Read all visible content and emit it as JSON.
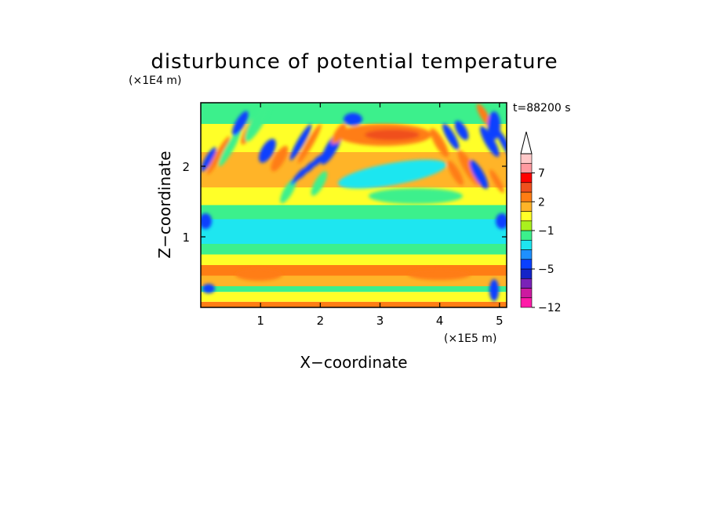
{
  "chart_data": {
    "type": "heatmap",
    "title": "disturbunce of potential temperature",
    "xlabel": "X−coordinate",
    "ylabel": "Z−coordinate",
    "x_unit": "(×1E5 m)",
    "y_unit": "(×1E4 m)",
    "time_label": "t=88200 s",
    "xlim": [
      0,
      5.12
    ],
    "ylim": [
      0,
      2.9
    ],
    "x_ticks": [
      {
        "value": 1,
        "label": "1"
      },
      {
        "value": 2,
        "label": "2"
      },
      {
        "value": 3,
        "label": "3"
      },
      {
        "value": 4,
        "label": "4"
      },
      {
        "value": 5,
        "label": "5"
      }
    ],
    "y_ticks": [
      {
        "value": 1,
        "label": "1"
      },
      {
        "value": 2,
        "label": "2"
      }
    ],
    "colorbar": {
      "levels": [
        -12,
        -10,
        -8,
        -6,
        -5,
        -4,
        -3,
        -2,
        -1,
        0,
        1,
        2,
        3,
        5,
        7,
        9,
        11
      ],
      "colors": [
        "#ff1aa8",
        "#cc1aa0",
        "#7a22b8",
        "#1424c8",
        "#0a40ff",
        "#1e90ff",
        "#1ee6f0",
        "#3cf08c",
        "#aaf01e",
        "#ffff28",
        "#ffb428",
        "#ff7d14",
        "#f0501e",
        "#ff0000",
        "#ff9aa0",
        "#ffc8c8"
      ],
      "tick_labels": [
        {
          "value": -12,
          "label": "−12"
        },
        {
          "value": -5,
          "label": "−5"
        },
        {
          "value": -1,
          "label": "−1"
        },
        {
          "value": 2,
          "label": "2"
        },
        {
          "value": 7,
          "label": "7"
        }
      ],
      "extend": "max"
    },
    "field_description": "horizontal layered anomaly bands with gravity-wave patterns near lateral boundaries",
    "bands": [
      {
        "z_range": [
          0.0,
          0.08
        ],
        "value": 2.5
      },
      {
        "z_range": [
          0.08,
          0.22
        ],
        "value": 0.5
      },
      {
        "z_range": [
          0.22,
          0.3
        ],
        "value": -1.5
      },
      {
        "z_range": [
          0.3,
          0.45
        ],
        "value": 1.5
      },
      {
        "z_range": [
          0.45,
          0.6
        ],
        "value": 2.5
      },
      {
        "z_range": [
          0.6,
          0.75
        ],
        "value": 0.5
      },
      {
        "z_range": [
          0.75,
          0.9
        ],
        "value": -1.5
      },
      {
        "z_range": [
          0.9,
          1.25
        ],
        "value": -2.5
      },
      {
        "z_range": [
          1.25,
          1.45
        ],
        "value": -1.5
      },
      {
        "z_range": [
          1.45,
          1.7
        ],
        "value": 0.5
      },
      {
        "z_range": [
          1.7,
          2.2
        ],
        "value": 1.5
      },
      {
        "z_range": [
          2.2,
          2.6
        ],
        "value": 0.5
      },
      {
        "z_range": [
          2.6,
          2.9
        ],
        "value": -1.5
      }
    ]
  }
}
